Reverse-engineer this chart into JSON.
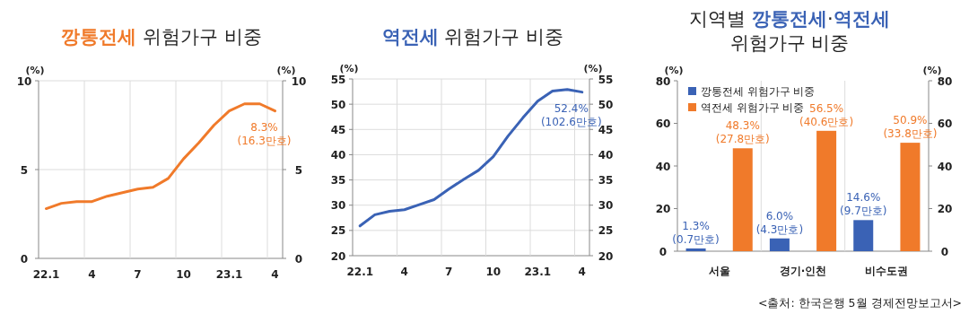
{
  "chart_data": [
    {
      "type": "line",
      "title": "**깡통전세** 위험가구 비중",
      "ylabel": "(%)",
      "y2label": "(%)",
      "categories": [
        "22.1",
        null,
        null,
        "4",
        null,
        null,
        "7",
        null,
        null,
        "10",
        null,
        null,
        "23.1",
        null,
        null,
        "4"
      ],
      "series": [
        {
          "color": "#f07a2a",
          "values": [
            2.8,
            3.1,
            3.2,
            3.2,
            3.5,
            3.7,
            3.9,
            4.0,
            4.5,
            5.6,
            6.5,
            7.5,
            8.3,
            8.7,
            8.7,
            8.3
          ]
        }
      ],
      "ylim": [
        0,
        10
      ],
      "yticks": [
        0,
        5,
        10
      ],
      "y2lim": [
        0,
        10
      ],
      "y2ticks": [
        0,
        5,
        10
      ],
      "grid": true,
      "annotations": [
        "8.3%\n(16.3만호)"
      ]
    },
    {
      "type": "line",
      "title": "**역전세** 위험가구 비중",
      "ylabel": "(%)",
      "y2label": "(%)",
      "categories": [
        "22.1",
        null,
        null,
        "4",
        null,
        null,
        "7",
        null,
        null,
        "10",
        null,
        null,
        "23.1",
        null,
        null,
        "4"
      ],
      "series": [
        {
          "color": "#3a62b5",
          "values": [
            25.9,
            28.1,
            28.8,
            29.1,
            30.1,
            31.1,
            33.2,
            35.1,
            36.9,
            39.6,
            43.7,
            47.3,
            50.6,
            52.6,
            52.9,
            52.4
          ]
        }
      ],
      "ylim": [
        20,
        55
      ],
      "yticks": [
        20,
        25,
        30,
        35,
        40,
        45,
        50,
        55
      ],
      "y2lim": [
        20,
        55
      ],
      "y2ticks": [
        20,
        25,
        30,
        35,
        40,
        45,
        50,
        55
      ],
      "grid": true,
      "annotations": [
        "52.4%\n(102.6만호)"
      ]
    },
    {
      "type": "bar",
      "title": "지역별 **깡통전세**·**역전세**\n위험가구 비중",
      "ylabel": "(%)",
      "y2label": "(%)",
      "categories": [
        "서울",
        "경기·인천",
        "비수도권"
      ],
      "series": [
        {
          "name": "깡통전세 위험가구 비중",
          "color": "#3a62b5",
          "values": [
            1.3,
            6.0,
            14.6
          ],
          "value_labels": [
            "1.3%\n(0.7만호)",
            "6.0%\n(4.3만호)",
            "14.6%\n(9.7만호)"
          ]
        },
        {
          "name": "역전세 위험가구 비중",
          "color": "#f07a2a",
          "values": [
            48.3,
            56.5,
            50.9
          ],
          "value_labels": [
            "48.3%\n(27.8만호)",
            "56.5%\n(40.6만호)",
            "50.9%\n(33.8만호)"
          ]
        }
      ],
      "ylim": [
        0,
        80
      ],
      "yticks": [
        0,
        20,
        40,
        60,
        80
      ],
      "y2lim": [
        0,
        80
      ],
      "y2ticks": [
        0,
        20,
        40,
        60,
        80
      ],
      "grid": "x",
      "legend": "top left",
      "annotations": [
        "<출처: 한국은행 5월 경제전망보고서>"
      ]
    }
  ]
}
